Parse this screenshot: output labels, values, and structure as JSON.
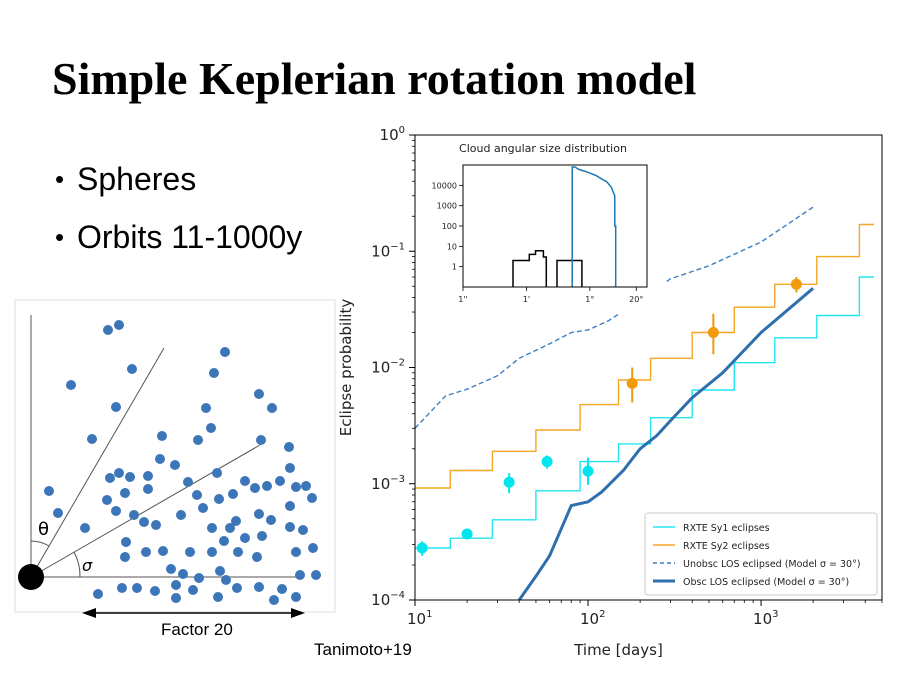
{
  "slide": {
    "title": "Simple Keplerian rotation model",
    "bullets": [
      "Spheres",
      "Orbits 11-1000y"
    ],
    "credit": "Tanimoto+19"
  },
  "diagram": {
    "theta_label": "θ",
    "sigma_label": "σ",
    "scale_label": "Factor 20",
    "dot_color": "#3d76b8"
  },
  "chart_data": [
    {
      "type": "line",
      "xlabel": "Time [days]",
      "ylabel": "Eclipse probability",
      "xscale": "log",
      "yscale": "log",
      "xlim": [
        10,
        5000
      ],
      "ylim": [
        0.0001,
        1
      ],
      "xticks": [
        {
          "v": 10,
          "label": "10",
          "sup": "1"
        },
        {
          "v": 100,
          "label": "10",
          "sup": "2"
        },
        {
          "v": 1000,
          "label": "10",
          "sup": "3"
        }
      ],
      "yticks": [
        {
          "v": 1,
          "label": "10",
          "sup": "0"
        },
        {
          "v": 0.1,
          "label": "10",
          "sup": "−1"
        },
        {
          "v": 0.01,
          "label": "10",
          "sup": "−2"
        },
        {
          "v": 0.001,
          "label": "10",
          "sup": "−3"
        },
        {
          "v": 0.0001,
          "label": "10",
          "sup": "−4"
        }
      ],
      "legend_position": "lower right",
      "series": [
        {
          "name": "RXTE Sy1 eclipses",
          "style": "step",
          "color": "#22e5f0",
          "x": [
            10,
            16,
            16,
            28,
            28,
            50,
            50,
            90,
            90,
            150,
            150,
            230,
            230,
            400,
            400,
            700,
            700,
            1200,
            1200,
            2100,
            2100,
            3700,
            3700,
            4500
          ],
          "y": [
            0.00028,
            0.00028,
            0.00034,
            0.00034,
            0.00049,
            0.00049,
            0.00087,
            0.00087,
            0.00155,
            0.00155,
            0.0022,
            0.0022,
            0.0037,
            0.0037,
            0.0064,
            0.0064,
            0.011,
            0.011,
            0.018,
            0.018,
            0.028,
            0.028,
            0.06,
            0.06
          ]
        },
        {
          "name": "RXTE Sy2 eclipses",
          "style": "step",
          "color": "#f5a623",
          "x": [
            10,
            16,
            16,
            28,
            28,
            50,
            50,
            90,
            90,
            150,
            150,
            230,
            230,
            400,
            400,
            700,
            700,
            1200,
            1200,
            2100,
            2100,
            3700,
            3700,
            4500
          ],
          "y": [
            0.00092,
            0.00092,
            0.0013,
            0.0013,
            0.0019,
            0.0019,
            0.0029,
            0.0029,
            0.0048,
            0.0048,
            0.0078,
            0.0078,
            0.012,
            0.012,
            0.02,
            0.02,
            0.033,
            0.033,
            0.052,
            0.052,
            0.09,
            0.09,
            0.17,
            0.17
          ]
        },
        {
          "name": "Unobsc LOS eclipsed (Model σ = 30°)",
          "style": "dashed",
          "color": "#3d7fc0",
          "x": [
            10,
            12,
            15,
            20,
            30,
            40,
            60,
            80,
            100,
            130,
            200,
            300,
            500,
            1000,
            2000
          ],
          "y": [
            0.003,
            0.004,
            0.0057,
            0.0065,
            0.0085,
            0.012,
            0.016,
            0.02,
            0.021,
            0.025,
            0.038,
            0.058,
            0.075,
            0.12,
            0.24
          ]
        },
        {
          "name": "Obsc LOS eclipsed (Model σ = 30°)",
          "style": "thick",
          "color": "#2f6fae",
          "x": [
            40,
            50,
            60,
            80,
            100,
            120,
            160,
            200,
            250,
            300,
            400,
            600,
            1000,
            2000
          ],
          "y": [
            0.0001,
            0.00016,
            0.00024,
            0.00065,
            0.0007,
            0.00085,
            0.0013,
            0.002,
            0.0026,
            0.0035,
            0.0055,
            0.009,
            0.02,
            0.048
          ]
        }
      ],
      "points": [
        {
          "name": "Sy1 data",
          "color": "#00e5ee",
          "x": [
            11,
            20,
            35,
            58,
            100
          ],
          "y": [
            0.00028,
            0.00037,
            0.00103,
            0.00155,
            0.00128
          ],
          "err_lo": [
            4e-05,
            3e-05,
            0.0002,
            0.0002,
            0.0003
          ],
          "err_hi": [
            4e-05,
            3e-05,
            0.0002,
            0.0002,
            0.0004
          ]
        },
        {
          "name": "Sy2 data",
          "color": "#f19a0b",
          "x": [
            180,
            530,
            1600
          ],
          "y": [
            0.0073,
            0.02,
            0.052
          ],
          "err_lo": [
            0.0023,
            0.007,
            0.008
          ],
          "err_hi": [
            0.0027,
            0.009,
            0.008
          ]
        }
      ]
    },
    {
      "type": "bar",
      "title": "Cloud angular size distribution",
      "yscale": "log",
      "yticks": [
        "10000",
        "1000",
        "100",
        "10",
        "1"
      ],
      "yticks_values": [
        10000,
        1000,
        100,
        10,
        1
      ],
      "xticks": [
        "1''",
        "1'",
        "1°",
        "20°"
      ],
      "xticks_values": [
        0.0002778,
        0.01667,
        1,
        20
      ],
      "ylim": [
        0.1,
        100000
      ],
      "xlim": [
        0.0002778,
        40
      ],
      "histograms": [
        {
          "color": "#000000",
          "x": [
            0.007,
            0.007,
            0.02,
            0.02,
            0.03,
            0.03,
            0.05,
            0.05,
            0.06,
            0.06
          ],
          "y": [
            0.1,
            2,
            2,
            4,
            4,
            6,
            6,
            3,
            3,
            0.1
          ]
        },
        {
          "color": "#000000",
          "x": [
            0.12,
            0.12,
            0.6,
            0.6
          ],
          "y": [
            0.1,
            2,
            2,
            0.1
          ]
        },
        {
          "color": "#1f77b4",
          "x": [
            0.32,
            0.32,
            0.38,
            0.5,
            0.7,
            1,
            1.5,
            2.2,
            3,
            4,
            5,
            5,
            5.3,
            5.3
          ],
          "y": [
            0.1,
            80000,
            80000,
            60000,
            50000,
            40000,
            30000,
            20000,
            15000,
            8000,
            3000,
            100,
            100,
            0.1
          ]
        }
      ]
    }
  ]
}
